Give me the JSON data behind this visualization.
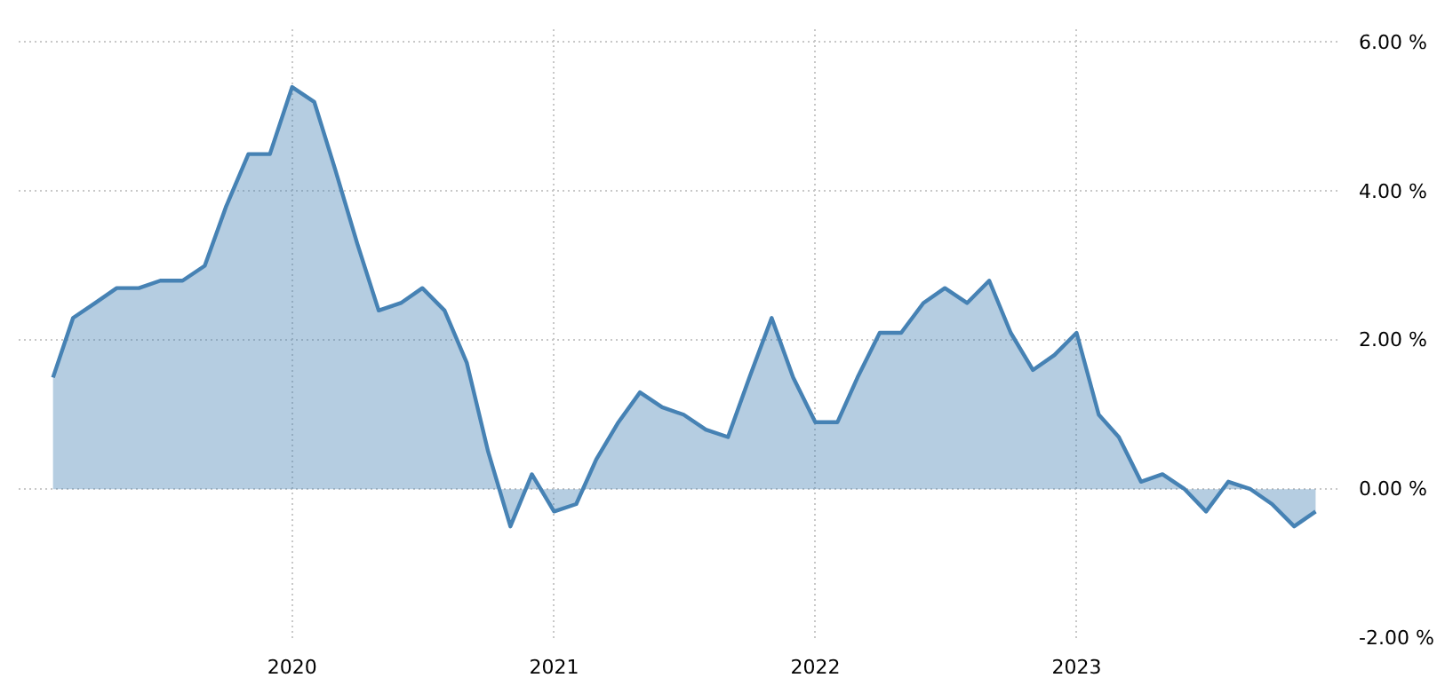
{
  "chart_data": {
    "type": "area",
    "x": [
      "2019-02",
      "2019-03",
      "2019-04",
      "2019-05",
      "2019-06",
      "2019-07",
      "2019-08",
      "2019-09",
      "2019-10",
      "2019-11",
      "2019-12",
      "2020-01",
      "2020-02",
      "2020-03",
      "2020-04",
      "2020-05",
      "2020-06",
      "2020-07",
      "2020-08",
      "2020-09",
      "2020-10",
      "2020-11",
      "2020-12",
      "2021-01",
      "2021-02",
      "2021-03",
      "2021-04",
      "2021-05",
      "2021-06",
      "2021-07",
      "2021-08",
      "2021-09",
      "2021-10",
      "2021-11",
      "2021-12",
      "2022-01",
      "2022-02",
      "2022-03",
      "2022-04",
      "2022-05",
      "2022-06",
      "2022-07",
      "2022-08",
      "2022-09",
      "2022-10",
      "2022-11",
      "2022-12",
      "2023-01",
      "2023-02",
      "2023-03",
      "2023-04",
      "2023-05",
      "2023-06",
      "2023-07",
      "2023-08",
      "2023-09",
      "2023-10",
      "2023-11",
      "2023-12"
    ],
    "series": [
      {
        "color": "#4682b4",
        "values": [
          1.5,
          2.3,
          2.5,
          2.7,
          2.7,
          2.8,
          2.8,
          3.0,
          3.8,
          4.5,
          4.5,
          5.4,
          5.2,
          4.3,
          3.3,
          2.4,
          2.5,
          2.7,
          2.4,
          1.7,
          0.5,
          -0.5,
          0.2,
          -0.3,
          -0.2,
          0.4,
          0.9,
          1.3,
          1.1,
          1.0,
          0.8,
          0.7,
          1.5,
          2.3,
          1.5,
          0.9,
          0.9,
          1.5,
          2.1,
          2.1,
          2.5,
          2.7,
          2.5,
          2.8,
          2.1,
          1.6,
          1.8,
          2.1,
          1.0,
          0.7,
          0.1,
          0.2,
          0.0,
          -0.3,
          0.1,
          0.0,
          -0.2,
          -0.5,
          -0.3
        ]
      }
    ],
    "xlim": [
      "2018-12-15",
      "2024-01-03"
    ],
    "xticks": [
      {
        "value": "2020",
        "label": "2020"
      },
      {
        "value": "2021",
        "label": "2021"
      },
      {
        "value": "2022",
        "label": "2022"
      },
      {
        "value": "2023",
        "label": "2023"
      }
    ],
    "ylim": [
      -2,
      6.2
    ],
    "yticks": [
      {
        "value": -2,
        "label": "-2.00 %"
      },
      {
        "value": 0,
        "label": "0.00 %"
      },
      {
        "value": 2,
        "label": "2.00 %"
      },
      {
        "value": 4,
        "label": "4.00 %"
      },
      {
        "value": 6,
        "label": "6.00 %"
      }
    ],
    "grid": true
  }
}
